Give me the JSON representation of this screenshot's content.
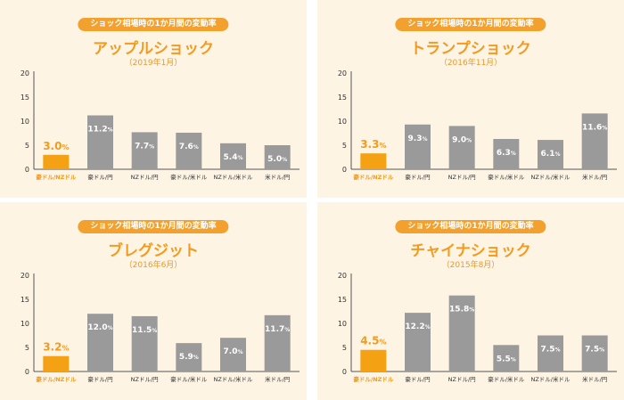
{
  "pill_label": "ショック相場時の1か月間の変動率",
  "colors": {
    "accent": "#f29b1f",
    "highlight_bar": "#f4a213",
    "bar": "#9a9a9a",
    "panel_bg": "#fdf4e4",
    "axis": "#555555"
  },
  "chart_data": [
    {
      "type": "bar",
      "title": "アップルショック",
      "subtitle": "（2019年1月）",
      "categories": [
        "豪ドル/NZドル",
        "豪ドル/円",
        "NZドル/円",
        "豪ドル/米ドル",
        "NZドル/米ドル",
        "米ドル/円"
      ],
      "values": [
        3.0,
        11.2,
        7.7,
        7.6,
        5.4,
        5.0
      ],
      "labels": [
        "3.0",
        "11.2",
        "7.7",
        "7.6",
        "5.4",
        "5.0"
      ],
      "unit": "%",
      "highlight_index": 0,
      "ylim": [
        0,
        20
      ],
      "yticks": [
        0,
        5,
        10,
        15,
        20
      ]
    },
    {
      "type": "bar",
      "title": "トランプショック",
      "subtitle": "（2016年11月）",
      "categories": [
        "豪ドル/NZドル",
        "豪ドル/円",
        "NZドル/円",
        "豪ドル/米ドル",
        "NZドル/米ドル",
        "米ドル/円"
      ],
      "values": [
        3.3,
        9.3,
        9.0,
        6.3,
        6.1,
        11.6
      ],
      "labels": [
        "3.3",
        "9.3",
        "9.0",
        "6.3",
        "6.1",
        "11.6"
      ],
      "unit": "%",
      "highlight_index": 0,
      "ylim": [
        0,
        20
      ],
      "yticks": [
        0,
        5,
        10,
        15,
        20
      ]
    },
    {
      "type": "bar",
      "title": "ブレグジット",
      "subtitle": "（2016年6月）",
      "categories": [
        "豪ドル/NZドル",
        "豪ドル/円",
        "NZドル/円",
        "豪ドル/米ドル",
        "NZドル/米ドル",
        "米ドル/円"
      ],
      "values": [
        3.2,
        12.0,
        11.5,
        5.9,
        7.0,
        11.7
      ],
      "labels": [
        "3.2",
        "12.0",
        "11.5",
        "5.9",
        "7.0",
        "11.7"
      ],
      "unit": "%",
      "highlight_index": 0,
      "ylim": [
        0,
        20
      ],
      "yticks": [
        0,
        5,
        10,
        15,
        20
      ]
    },
    {
      "type": "bar",
      "title": "チャイナショック",
      "subtitle": "（2015年8月）",
      "categories": [
        "豪ドル/NZドル",
        "豪ドル/円",
        "NZドル/円",
        "豪ドル/米ドル",
        "NZドル/米ドル",
        "米ドル/円"
      ],
      "values": [
        4.5,
        12.2,
        15.8,
        5.5,
        7.5,
        7.5
      ],
      "labels": [
        "4.5",
        "12.2",
        "15.8",
        "5.5",
        "7.5",
        "7.5"
      ],
      "unit": "%",
      "highlight_index": 0,
      "ylim": [
        0,
        20
      ],
      "yticks": [
        0,
        5,
        10,
        15,
        20
      ]
    }
  ]
}
